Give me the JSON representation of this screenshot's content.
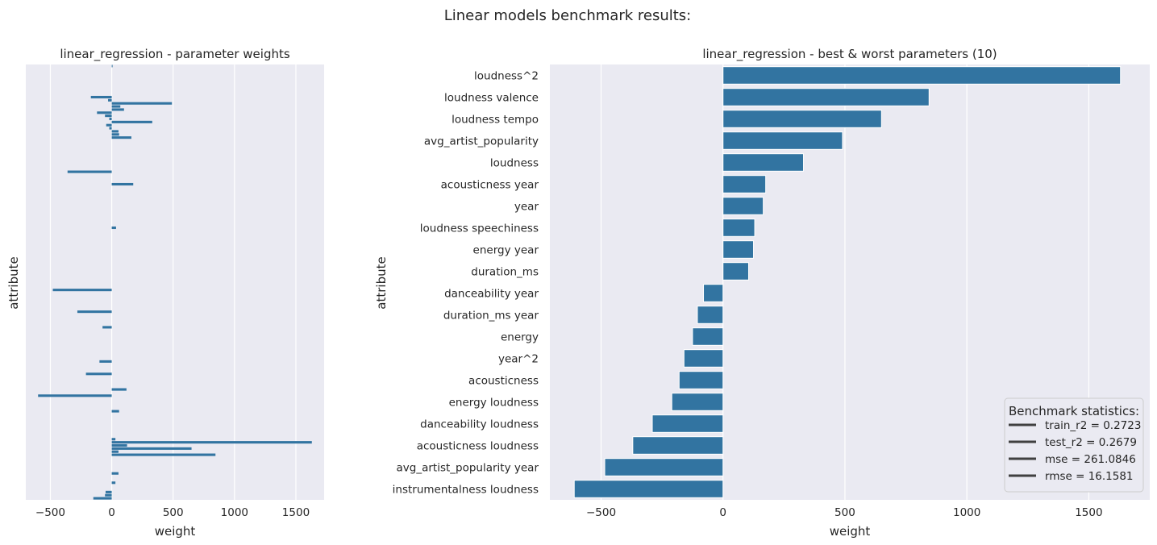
{
  "figure": {
    "title": "Linear models benchmark results:"
  },
  "colors": {
    "bar": "#3274a1",
    "panel": "#eaeaf2",
    "grid": "#ffffff",
    "text": "#262626",
    "legend_line": "#404040"
  },
  "chart_data": [
    {
      "type": "bar",
      "orientation": "horizontal",
      "title": "linear_regression - parameter weights",
      "xlabel": "weight",
      "ylabel": "attribute",
      "xlim": [
        -700,
        1730
      ],
      "xticks": [
        -500,
        0,
        500,
        1000,
        1500
      ],
      "xtick_labels": [
        "−500",
        "0",
        "500",
        "1000",
        "1500"
      ],
      "grid": true,
      "category_labels_shown": false,
      "values": [
        5,
        0,
        0,
        0,
        0,
        0,
        0,
        0,
        0,
        0,
        -170,
        -30,
        490,
        70,
        100,
        -120,
        -55,
        -20,
        330,
        -45,
        -20,
        55,
        60,
        160,
        0,
        0,
        0,
        0,
        0,
        0,
        0,
        0,
        0,
        0,
        -360,
        0,
        0,
        0,
        175,
        0,
        0,
        0,
        0,
        0,
        0,
        0,
        0,
        0,
        0,
        0,
        0,
        0,
        35,
        0,
        0,
        0,
        0,
        0,
        0,
        0,
        0,
        0,
        0,
        0,
        0,
        0,
        0,
        0,
        0,
        0,
        0,
        0,
        -480,
        0,
        0,
        0,
        0,
        0,
        0,
        -280,
        0,
        0,
        0,
        0,
        -75,
        0,
        0,
        0,
        0,
        0,
        0,
        0,
        0,
        0,
        0,
        -100,
        0,
        0,
        0,
        -210,
        0,
        0,
        0,
        0,
        120,
        0,
        -600,
        0,
        0,
        0,
        0,
        60,
        0,
        0,
        0,
        0,
        0,
        0,
        0,
        0,
        30,
        1630,
        125,
        650,
        55,
        845,
        0,
        0,
        0,
        0,
        0,
        55,
        0,
        0,
        30,
        0,
        0,
        -50,
        -55,
        -150
      ]
    },
    {
      "type": "bar",
      "orientation": "horizontal",
      "title": "linear_regression - best & worst parameters (10)",
      "xlabel": "weight",
      "ylabel": "attribute",
      "xlim": [
        -710,
        1750
      ],
      "xticks": [
        -500,
        0,
        500,
        1000,
        1500
      ],
      "xtick_labels": [
        "−500",
        "0",
        "500",
        "1000",
        "1500"
      ],
      "grid": true,
      "categories": [
        "loudness^2",
        "loudness valence",
        "loudness tempo",
        "avg_artist_popularity",
        "loudness",
        "acousticness year",
        "year",
        "loudness speechiness",
        "energy year",
        "duration_ms",
        "danceability year",
        "duration_ms year",
        "energy",
        "year^2",
        "acousticness",
        "energy loudness",
        "danceability loudness",
        "acousticness loudness",
        "avg_artist_popularity year",
        "instrumentalness loudness"
      ],
      "values": [
        1630,
        845,
        650,
        490,
        330,
        175,
        165,
        130,
        125,
        105,
        -80,
        -105,
        -125,
        -160,
        -180,
        -210,
        -290,
        -370,
        -485,
        -610
      ],
      "legend": {
        "title": "Benchmark statistics:",
        "placement": "lower-right",
        "entries": [
          "train_r2 = 0.2723",
          "test_r2 = 0.2679",
          "mse = 261.0846",
          "rmse = 16.1581"
        ]
      }
    }
  ]
}
